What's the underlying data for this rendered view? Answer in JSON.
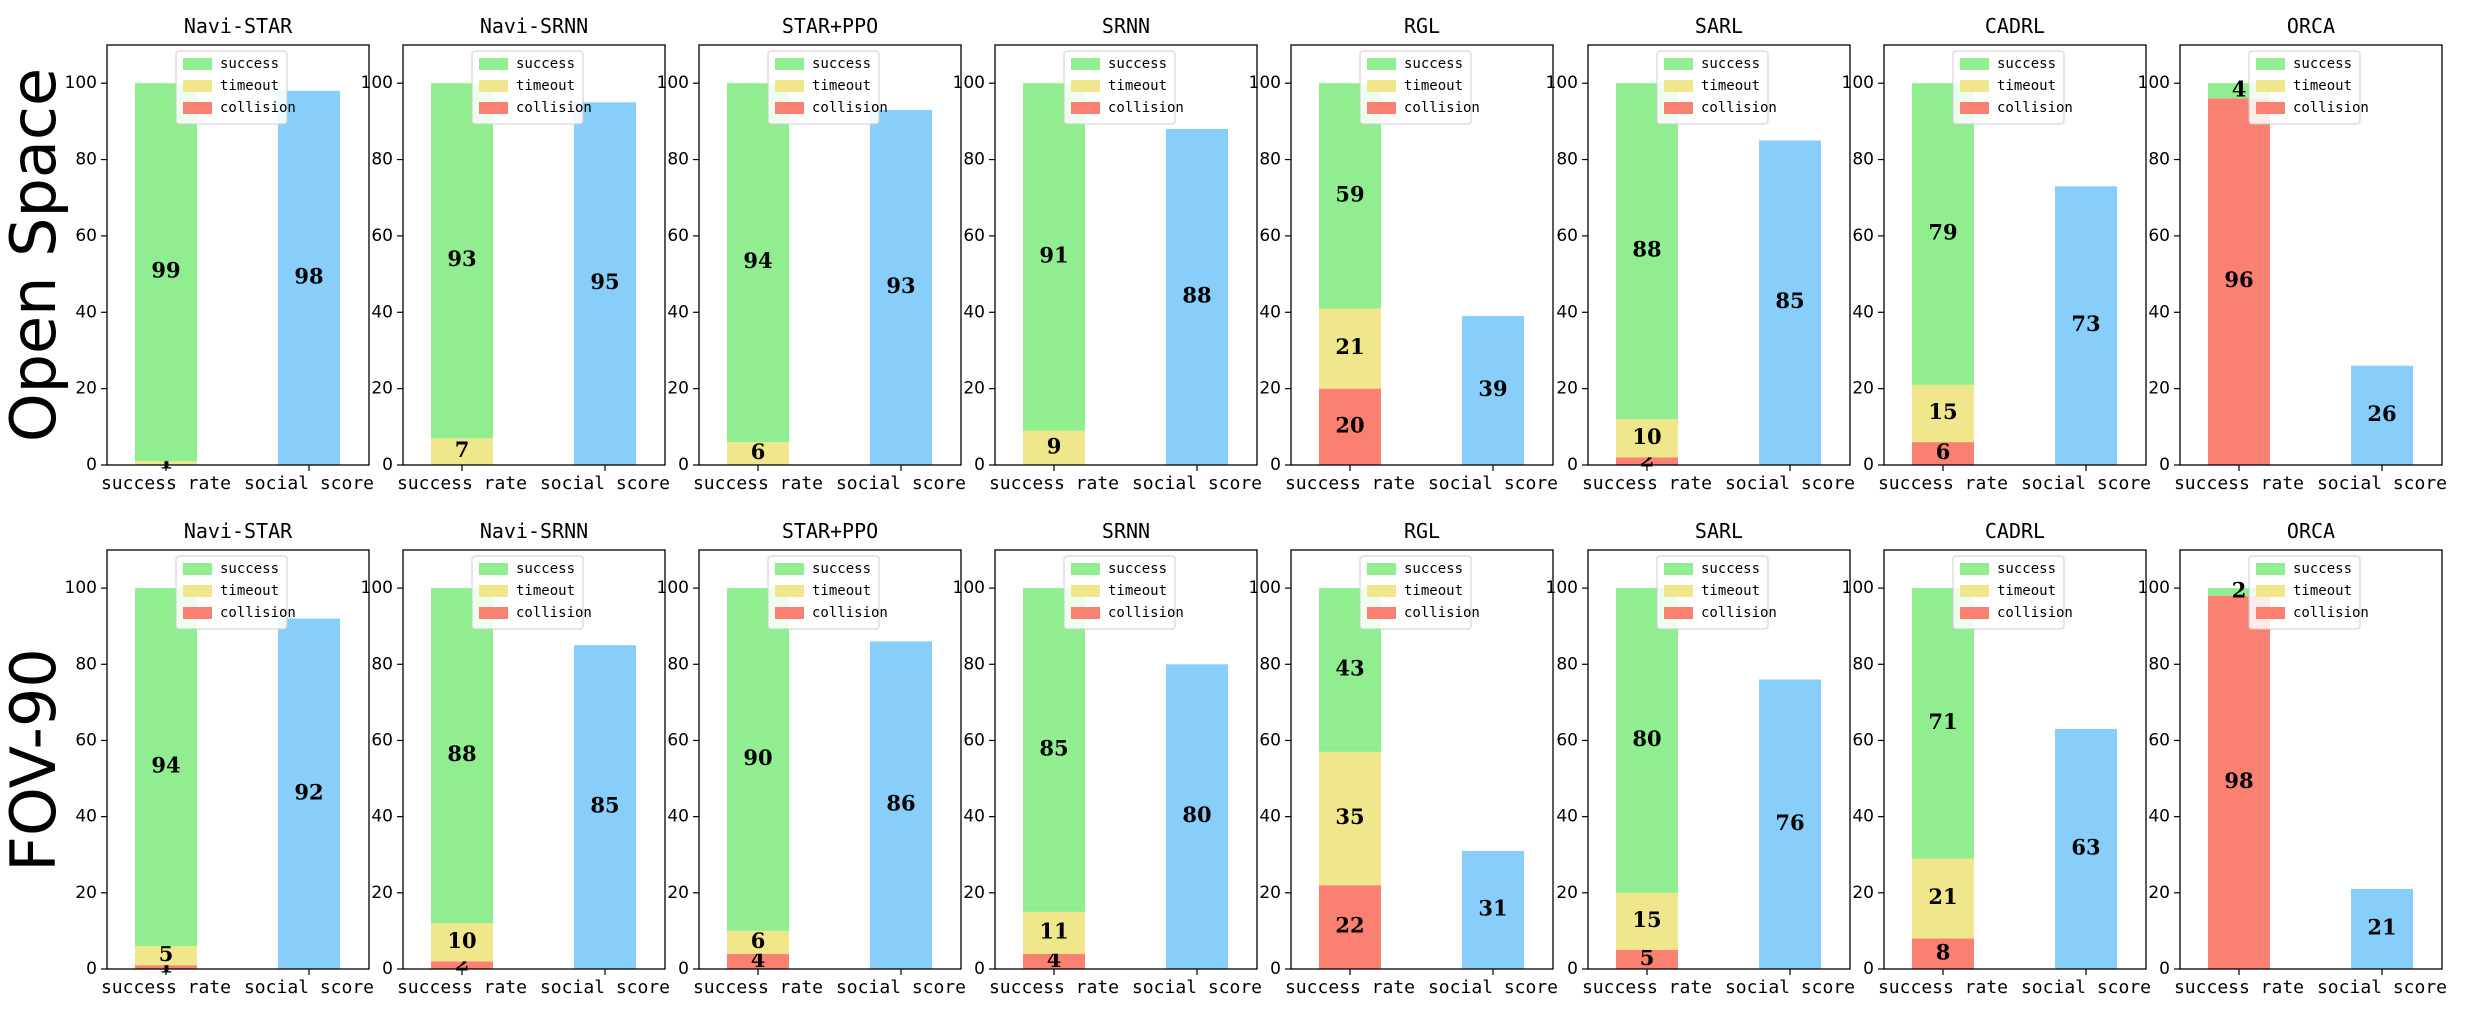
{
  "colors": {
    "success": "#90EE90",
    "timeout": "#F0E68C",
    "collision": "#FA8072",
    "social": "#87CEFA"
  },
  "row_labels": [
    "Open Space",
    "FOV-90"
  ],
  "chart_data": [
    {
      "type": "bar",
      "row": "Open Space",
      "title": "Navi-STAR",
      "categories": [
        "success rate",
        "social score"
      ],
      "ylim": [
        0,
        110
      ],
      "yticks": [
        0,
        20,
        40,
        60,
        80,
        100
      ],
      "legend": [
        "success",
        "timeout",
        "collision"
      ],
      "series": [
        {
          "name": "collision",
          "values": [
            0,
            null
          ]
        },
        {
          "name": "timeout",
          "values": [
            1,
            null
          ]
        },
        {
          "name": "success",
          "values": [
            99,
            null
          ]
        },
        {
          "name": "social",
          "values": [
            null,
            98
          ]
        }
      ]
    },
    {
      "type": "bar",
      "row": "Open Space",
      "title": "Navi-SRNN",
      "categories": [
        "success rate",
        "social score"
      ],
      "ylim": [
        0,
        110
      ],
      "yticks": [
        0,
        20,
        40,
        60,
        80,
        100
      ],
      "legend": [
        "success",
        "timeout",
        "collision"
      ],
      "series": [
        {
          "name": "collision",
          "values": [
            0,
            null
          ]
        },
        {
          "name": "timeout",
          "values": [
            7,
            null
          ]
        },
        {
          "name": "success",
          "values": [
            93,
            null
          ]
        },
        {
          "name": "social",
          "values": [
            null,
            95
          ]
        }
      ]
    },
    {
      "type": "bar",
      "row": "Open Space",
      "title": "STAR+PPO",
      "categories": [
        "success rate",
        "social score"
      ],
      "ylim": [
        0,
        110
      ],
      "yticks": [
        0,
        20,
        40,
        60,
        80,
        100
      ],
      "legend": [
        "success",
        "timeout",
        "collision"
      ],
      "series": [
        {
          "name": "collision",
          "values": [
            0,
            null
          ]
        },
        {
          "name": "timeout",
          "values": [
            6,
            null
          ]
        },
        {
          "name": "success",
          "values": [
            94,
            null
          ]
        },
        {
          "name": "social",
          "values": [
            null,
            93
          ]
        }
      ]
    },
    {
      "type": "bar",
      "row": "Open Space",
      "title": "SRNN",
      "categories": [
        "success rate",
        "social score"
      ],
      "ylim": [
        0,
        110
      ],
      "yticks": [
        0,
        20,
        40,
        60,
        80,
        100
      ],
      "legend": [
        "success",
        "timeout",
        "collision"
      ],
      "series": [
        {
          "name": "collision",
          "values": [
            0,
            null
          ]
        },
        {
          "name": "timeout",
          "values": [
            9,
            null
          ]
        },
        {
          "name": "success",
          "values": [
            91,
            null
          ]
        },
        {
          "name": "social",
          "values": [
            null,
            88
          ]
        }
      ]
    },
    {
      "type": "bar",
      "row": "Open Space",
      "title": "RGL",
      "categories": [
        "success rate",
        "social score"
      ],
      "ylim": [
        0,
        110
      ],
      "yticks": [
        0,
        20,
        40,
        60,
        80,
        100
      ],
      "legend": [
        "success",
        "timeout",
        "collision"
      ],
      "series": [
        {
          "name": "collision",
          "values": [
            20,
            null
          ]
        },
        {
          "name": "timeout",
          "values": [
            21,
            null
          ]
        },
        {
          "name": "success",
          "values": [
            59,
            null
          ]
        },
        {
          "name": "social",
          "values": [
            null,
            39
          ]
        }
      ]
    },
    {
      "type": "bar",
      "row": "Open Space",
      "title": "SARL",
      "categories": [
        "success rate",
        "social score"
      ],
      "ylim": [
        0,
        110
      ],
      "yticks": [
        0,
        20,
        40,
        60,
        80,
        100
      ],
      "legend": [
        "success",
        "timeout",
        "collision"
      ],
      "series": [
        {
          "name": "collision",
          "values": [
            2,
            null
          ]
        },
        {
          "name": "timeout",
          "values": [
            10,
            null
          ]
        },
        {
          "name": "success",
          "values": [
            88,
            null
          ]
        },
        {
          "name": "social",
          "values": [
            null,
            85
          ]
        }
      ]
    },
    {
      "type": "bar",
      "row": "Open Space",
      "title": "CADRL",
      "categories": [
        "success rate",
        "social score"
      ],
      "ylim": [
        0,
        110
      ],
      "yticks": [
        0,
        20,
        40,
        60,
        80,
        100
      ],
      "legend": [
        "success",
        "timeout",
        "collision"
      ],
      "series": [
        {
          "name": "collision",
          "values": [
            6,
            null
          ]
        },
        {
          "name": "timeout",
          "values": [
            15,
            null
          ]
        },
        {
          "name": "success",
          "values": [
            79,
            null
          ]
        },
        {
          "name": "social",
          "values": [
            null,
            73
          ]
        }
      ]
    },
    {
      "type": "bar",
      "row": "Open Space",
      "title": "ORCA",
      "categories": [
        "success rate",
        "social score"
      ],
      "ylim": [
        0,
        110
      ],
      "yticks": [
        0,
        20,
        40,
        60,
        80,
        100
      ],
      "legend": [
        "success",
        "timeout",
        "collision"
      ],
      "series": [
        {
          "name": "collision",
          "values": [
            96,
            null
          ]
        },
        {
          "name": "timeout",
          "values": [
            0,
            null
          ]
        },
        {
          "name": "success",
          "values": [
            4,
            null
          ]
        },
        {
          "name": "social",
          "values": [
            null,
            26
          ]
        }
      ]
    },
    {
      "type": "bar",
      "row": "FOV-90",
      "title": "Navi-STAR",
      "categories": [
        "success rate",
        "social score"
      ],
      "ylim": [
        0,
        110
      ],
      "yticks": [
        0,
        20,
        40,
        60,
        80,
        100
      ],
      "legend": [
        "success",
        "timeout",
        "collision"
      ],
      "series": [
        {
          "name": "collision",
          "values": [
            1,
            null
          ]
        },
        {
          "name": "timeout",
          "values": [
            5,
            null
          ]
        },
        {
          "name": "success",
          "values": [
            94,
            null
          ]
        },
        {
          "name": "social",
          "values": [
            null,
            92
          ]
        }
      ]
    },
    {
      "type": "bar",
      "row": "FOV-90",
      "title": "Navi-SRNN",
      "categories": [
        "success rate",
        "social score"
      ],
      "ylim": [
        0,
        110
      ],
      "yticks": [
        0,
        20,
        40,
        60,
        80,
        100
      ],
      "legend": [
        "success",
        "timeout",
        "collision"
      ],
      "series": [
        {
          "name": "collision",
          "values": [
            2,
            null
          ]
        },
        {
          "name": "timeout",
          "values": [
            10,
            null
          ]
        },
        {
          "name": "success",
          "values": [
            88,
            null
          ]
        },
        {
          "name": "social",
          "values": [
            null,
            85
          ]
        }
      ]
    },
    {
      "type": "bar",
      "row": "FOV-90",
      "title": "STAR+PPO",
      "categories": [
        "success rate",
        "social score"
      ],
      "ylim": [
        0,
        110
      ],
      "yticks": [
        0,
        20,
        40,
        60,
        80,
        100
      ],
      "legend": [
        "success",
        "timeout",
        "collision"
      ],
      "series": [
        {
          "name": "collision",
          "values": [
            4,
            null
          ]
        },
        {
          "name": "timeout",
          "values": [
            6,
            null
          ]
        },
        {
          "name": "success",
          "values": [
            90,
            null
          ]
        },
        {
          "name": "social",
          "values": [
            null,
            86
          ]
        }
      ]
    },
    {
      "type": "bar",
      "row": "FOV-90",
      "title": "SRNN",
      "categories": [
        "success rate",
        "social score"
      ],
      "ylim": [
        0,
        110
      ],
      "yticks": [
        0,
        20,
        40,
        60,
        80,
        100
      ],
      "legend": [
        "success",
        "timeout",
        "collision"
      ],
      "series": [
        {
          "name": "collision",
          "values": [
            4,
            null
          ]
        },
        {
          "name": "timeout",
          "values": [
            11,
            null
          ]
        },
        {
          "name": "success",
          "values": [
            85,
            null
          ]
        },
        {
          "name": "social",
          "values": [
            null,
            80
          ]
        }
      ]
    },
    {
      "type": "bar",
      "row": "FOV-90",
      "title": "RGL",
      "categories": [
        "success rate",
        "social score"
      ],
      "ylim": [
        0,
        110
      ],
      "yticks": [
        0,
        20,
        40,
        60,
        80,
        100
      ],
      "legend": [
        "success",
        "timeout",
        "collision"
      ],
      "series": [
        {
          "name": "collision",
          "values": [
            22,
            null
          ]
        },
        {
          "name": "timeout",
          "values": [
            35,
            null
          ]
        },
        {
          "name": "success",
          "values": [
            43,
            null
          ]
        },
        {
          "name": "social",
          "values": [
            null,
            31
          ]
        }
      ]
    },
    {
      "type": "bar",
      "row": "FOV-90",
      "title": "SARL",
      "categories": [
        "success rate",
        "social score"
      ],
      "ylim": [
        0,
        110
      ],
      "yticks": [
        0,
        20,
        40,
        60,
        80,
        100
      ],
      "legend": [
        "success",
        "timeout",
        "collision"
      ],
      "series": [
        {
          "name": "collision",
          "values": [
            5,
            null
          ]
        },
        {
          "name": "timeout",
          "values": [
            15,
            null
          ]
        },
        {
          "name": "success",
          "values": [
            80,
            null
          ]
        },
        {
          "name": "social",
          "values": [
            null,
            76
          ]
        }
      ]
    },
    {
      "type": "bar",
      "row": "FOV-90",
      "title": "CADRL",
      "categories": [
        "success rate",
        "social score"
      ],
      "ylim": [
        0,
        110
      ],
      "yticks": [
        0,
        20,
        40,
        60,
        80,
        100
      ],
      "legend": [
        "success",
        "timeout",
        "collision"
      ],
      "series": [
        {
          "name": "collision",
          "values": [
            8,
            null
          ]
        },
        {
          "name": "timeout",
          "values": [
            21,
            null
          ]
        },
        {
          "name": "success",
          "values": [
            71,
            null
          ]
        },
        {
          "name": "social",
          "values": [
            null,
            63
          ]
        }
      ]
    },
    {
      "type": "bar",
      "row": "FOV-90",
      "title": "ORCA",
      "categories": [
        "success rate",
        "social score"
      ],
      "ylim": [
        0,
        110
      ],
      "yticks": [
        0,
        20,
        40,
        60,
        80,
        100
      ],
      "legend": [
        "success",
        "timeout",
        "collision"
      ],
      "series": [
        {
          "name": "collision",
          "values": [
            98,
            null
          ]
        },
        {
          "name": "timeout",
          "values": [
            0,
            null
          ]
        },
        {
          "name": "success",
          "values": [
            2,
            null
          ]
        },
        {
          "name": "social",
          "values": [
            null,
            21
          ]
        }
      ]
    }
  ]
}
